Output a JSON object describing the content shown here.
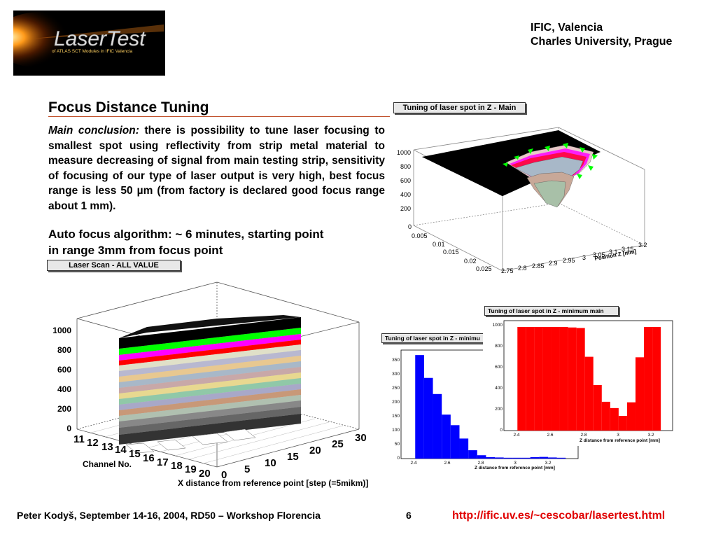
{
  "header": {
    "logo_text": "LaserTest",
    "logo_subtext": "of ATLAS SCT Modules in IFIC Valencia",
    "affiliation_line1": "IFIC, Valencia",
    "affiliation_line2": "Charles University, Prague"
  },
  "slide": {
    "title": "Focus Distance Tuning",
    "conclusion_label": "Main conclusion:",
    "conclusion_text": "there is possibility to tune laser focusing to smallest spot using reflectivity from strip metal material to measure decreasing of signal from main testing strip, sensitivity of focusing of our type of laser output is very high, best focus range is less 50 µm (from factory is declared good focus range about 1 mm).",
    "auto_focus_line1": "Auto focus algorithm: ~ 6  minutes, starting point",
    "auto_focus_line2": "in range 3mm from focus point"
  },
  "plots": {
    "top_right": {
      "label": "Tuning of laser spot in Z - Main",
      "z_ticks": [
        "1000",
        "800",
        "600",
        "400",
        "200",
        "0"
      ],
      "y_ticks": [
        "0",
        "0.005",
        "0.01",
        "0.015",
        "0.02",
        "0.025"
      ],
      "x_ticks": [
        "2.75",
        "2.8",
        "2.85",
        "2.9",
        "2.95",
        "3",
        "3.05",
        "3.1",
        "3.15",
        "3.2"
      ],
      "x_title": "Position Z [mm]"
    },
    "lego": {
      "label": "Laser Scan - ALL VALUE",
      "z_ticks": [
        "1000",
        "800",
        "600",
        "400",
        "200",
        "0"
      ],
      "channel_ticks": [
        "11",
        "12",
        "13",
        "14",
        "15",
        "16",
        "17",
        "18",
        "19",
        "20"
      ],
      "channel_title": "Channel No.",
      "x_ticks": [
        "0",
        "5",
        "10",
        "15",
        "20",
        "25",
        "30"
      ],
      "x_title": "X distance from reference point [step (=5mikm)]"
    },
    "hist_blue": {
      "label": "Tuning of laser spot in Z - minimu",
      "y_ticks": [
        "350",
        "300",
        "250",
        "200",
        "150",
        "100",
        "50",
        "0"
      ],
      "x_ticks": [
        "2.4",
        "2.6",
        "2.8",
        "3",
        "3.2"
      ],
      "x_title": "Z distance from reference point [mm]"
    },
    "hist_red": {
      "label": "Tuning of laser spot in Z - minimum main",
      "y_ticks": [
        "1000",
        "800",
        "600",
        "400",
        "200",
        "0"
      ],
      "x_ticks": [
        "2.4",
        "2.6",
        "2.8",
        "3",
        "3.2"
      ],
      "x_title": "Z distance from reference point [mm]"
    }
  },
  "chart_data": [
    {
      "type": "bar",
      "title": "Tuning of laser spot in Z - minimu",
      "xlabel": "Z distance from reference point [mm]",
      "ylabel": "",
      "xlim": [
        2.35,
        3.35
      ],
      "ylim": [
        0,
        390
      ],
      "bin_edges": [
        2.43,
        2.48,
        2.53,
        2.58,
        2.63,
        2.68,
        2.73,
        2.78,
        2.83,
        2.88,
        2.93,
        2.98,
        3.03,
        3.08,
        3.13,
        3.18,
        3.23,
        3.28
      ],
      "values": [
        372,
        290,
        232,
        158,
        120,
        72,
        30,
        12,
        5,
        4,
        3,
        3,
        3,
        5,
        6,
        4,
        3
      ],
      "color": "#0000ff"
    },
    {
      "type": "bar",
      "title": "Tuning of laser spot in Z - minimum main",
      "xlabel": "Z distance from reference point [mm]",
      "ylabel": "",
      "xlim": [
        2.35,
        3.35
      ],
      "ylim": [
        0,
        1050
      ],
      "bin_edges": [
        2.43,
        2.48,
        2.53,
        2.58,
        2.63,
        2.68,
        2.73,
        2.78,
        2.83,
        2.88,
        2.93,
        2.98,
        3.03,
        3.08,
        3.13,
        3.18,
        3.23,
        3.28
      ],
      "values": [
        990,
        990,
        990,
        990,
        990,
        990,
        985,
        980,
        705,
        435,
        275,
        215,
        140,
        270,
        700,
        990,
        990
      ],
      "color": "#ff0000"
    }
  ],
  "footer": {
    "author": "Peter Kodyš, September 14-16, 2004, RD50 – Workshop Florencia",
    "page": "6",
    "url": "http://ific.uv.es/~cescobar/lasertest.html"
  },
  "colors": {
    "title_rule": "#c0502a",
    "url": "#e00000",
    "hist_blue": "#0000ff",
    "hist_red": "#ff0000"
  }
}
